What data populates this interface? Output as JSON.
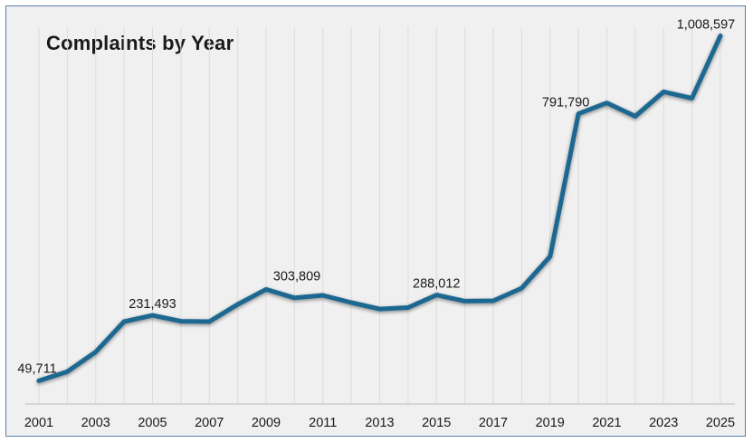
{
  "chart_data": {
    "type": "line",
    "title": "Complaints by Year",
    "xlabel": "",
    "ylabel": "",
    "x": [
      2001,
      2002,
      2003,
      2004,
      2005,
      2006,
      2007,
      2008,
      2009,
      2010,
      2011,
      2012,
      2013,
      2014,
      2015,
      2016,
      2017,
      2018,
      2019,
      2020,
      2021,
      2022,
      2023,
      2024,
      2025
    ],
    "series": [
      {
        "values": [
          49711,
          75000,
          130000,
          214000,
          231493,
          215000,
          214000,
          262000,
          303809,
          280000,
          287000,
          267000,
          249000,
          253000,
          288012,
          271000,
          272000,
          307000,
          395000,
          791790,
          822000,
          785000,
          853000,
          835000,
          1008597
        ],
        "color": "#1f6891"
      }
    ],
    "xticks": [
      "2001",
      "2003",
      "2005",
      "2007",
      "2009",
      "2011",
      "2013",
      "2015",
      "2017",
      "2019",
      "2021",
      "2023",
      "2025"
    ],
    "data_labels": [
      {
        "x": 2001,
        "text": "49,711"
      },
      {
        "x": 2005,
        "text": "231,493"
      },
      {
        "x": 2009,
        "text": "303,809"
      },
      {
        "x": 2015,
        "text": "288,012"
      },
      {
        "x": 2020,
        "text": "791,790"
      },
      {
        "x": 2025,
        "text": "1,008,597"
      }
    ],
    "ylim": [
      0,
      1040000
    ],
    "grid": "vertical",
    "legend": "none"
  }
}
